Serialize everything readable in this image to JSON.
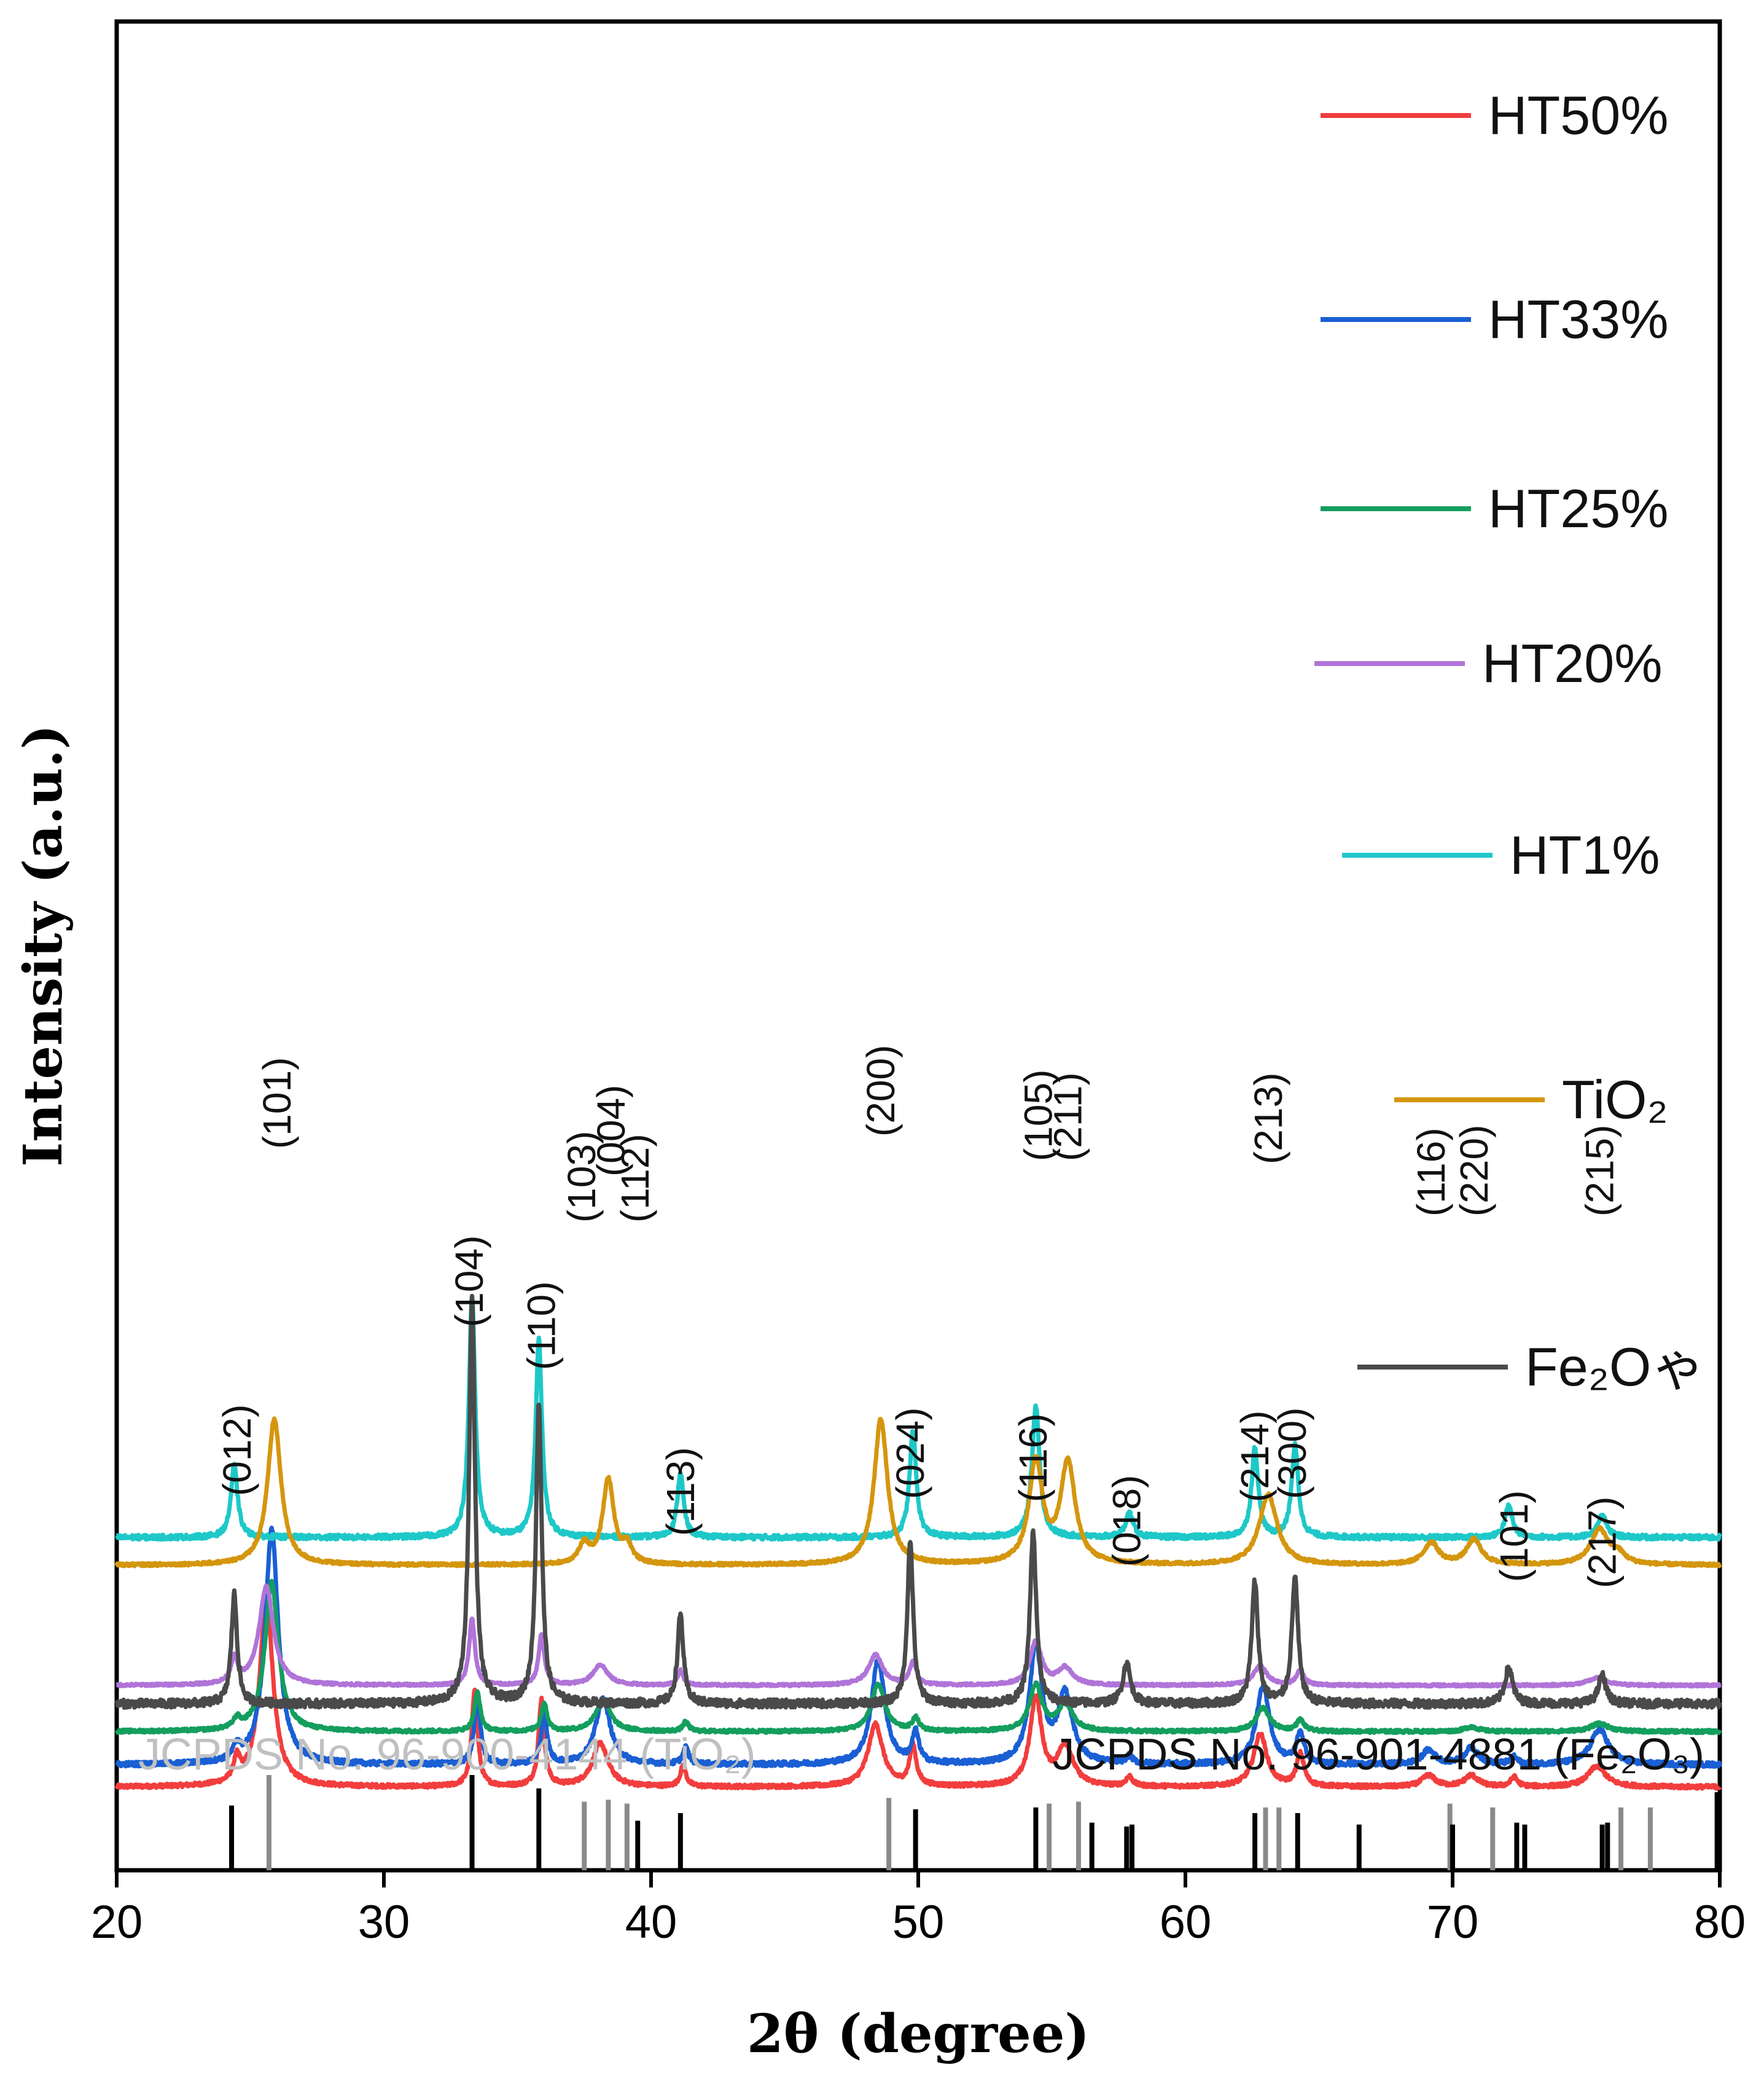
{
  "chart_data": {
    "type": "line",
    "title": "",
    "xlabel": "2θ (degree)",
    "ylabel": "Intensity (a.u.)",
    "xlim": [
      20,
      80
    ],
    "xticks": [
      "20",
      "30",
      "40",
      "50",
      "60",
      "70",
      "80"
    ],
    "series": [
      {
        "name": "HT50%",
        "color": "#f23d3d",
        "baseline": 0.955,
        "scale": 0.102,
        "peaks": [
          [
            24.5,
            0.12,
            0.15
          ],
          [
            25.6,
            1.0,
            0.3
          ],
          [
            33.4,
            0.52,
            0.13
          ],
          [
            35.9,
            0.46,
            0.13
          ],
          [
            38.1,
            0.23,
            0.35
          ],
          [
            41.2,
            0.11,
            0.13
          ],
          [
            48.4,
            0.33,
            0.33
          ],
          [
            49.8,
            0.21,
            0.15
          ],
          [
            54.4,
            0.47,
            0.26
          ],
          [
            55.5,
            0.21,
            0.35
          ],
          [
            57.9,
            0.05,
            0.15
          ],
          [
            62.8,
            0.28,
            0.3
          ],
          [
            64.3,
            0.17,
            0.17
          ],
          [
            69.1,
            0.06,
            0.3
          ],
          [
            70.7,
            0.06,
            0.3
          ],
          [
            72.3,
            0.05,
            0.15
          ],
          [
            75.4,
            0.11,
            0.4
          ]
        ]
      },
      {
        "name": "HT33%",
        "color": "#1a5fd4",
        "baseline": 0.943,
        "scale": 0.127,
        "peaks": [
          [
            24.5,
            0.06,
            0.15
          ],
          [
            25.8,
            1.0,
            0.3
          ],
          [
            33.5,
            0.3,
            0.13
          ],
          [
            36.0,
            0.22,
            0.13
          ],
          [
            38.2,
            0.28,
            0.33
          ],
          [
            41.3,
            0.07,
            0.13
          ],
          [
            48.5,
            0.45,
            0.3
          ],
          [
            49.9,
            0.13,
            0.15
          ],
          [
            54.4,
            0.5,
            0.28
          ],
          [
            55.5,
            0.29,
            0.33
          ],
          [
            57.9,
            0.03,
            0.15
          ],
          [
            62.9,
            0.33,
            0.3
          ],
          [
            64.3,
            0.13,
            0.17
          ],
          [
            69.1,
            0.06,
            0.3
          ],
          [
            70.7,
            0.07,
            0.3
          ],
          [
            72.3,
            0.03,
            0.15
          ],
          [
            75.5,
            0.15,
            0.4
          ]
        ]
      },
      {
        "name": "HT25%",
        "color": "#149e5e",
        "baseline": 0.925,
        "scale": 0.085,
        "peaks": [
          [
            24.5,
            0.06,
            0.15
          ],
          [
            25.8,
            0.95,
            0.3
          ],
          [
            33.5,
            0.25,
            0.13
          ],
          [
            36.0,
            0.18,
            0.13
          ],
          [
            38.2,
            0.2,
            0.33
          ],
          [
            41.3,
            0.06,
            0.13
          ],
          [
            48.5,
            0.3,
            0.3
          ],
          [
            49.9,
            0.08,
            0.15
          ],
          [
            54.4,
            0.29,
            0.28
          ],
          [
            55.5,
            0.17,
            0.33
          ],
          [
            62.9,
            0.15,
            0.3
          ],
          [
            64.3,
            0.07,
            0.17
          ],
          [
            70.7,
            0.03,
            0.3
          ],
          [
            75.5,
            0.05,
            0.4
          ]
        ]
      },
      {
        "name": "HT20%",
        "color": "#b074d8",
        "baseline": 0.9,
        "scale": 0.065,
        "peaks": [
          [
            24.4,
            0.2,
            0.15
          ],
          [
            25.6,
            0.82,
            0.32
          ],
          [
            33.3,
            0.55,
            0.13
          ],
          [
            35.9,
            0.42,
            0.13
          ],
          [
            38.1,
            0.17,
            0.33
          ],
          [
            41.1,
            0.12,
            0.13
          ],
          [
            48.4,
            0.25,
            0.32
          ],
          [
            49.8,
            0.19,
            0.15
          ],
          [
            54.4,
            0.36,
            0.26
          ],
          [
            55.5,
            0.14,
            0.33
          ],
          [
            62.8,
            0.16,
            0.3
          ],
          [
            64.3,
            0.12,
            0.17
          ],
          [
            75.4,
            0.06,
            0.4
          ]
        ]
      },
      {
        "name": "HT1%",
        "color": "#1ec8c8",
        "baseline": 0.82,
        "scale": 0.13,
        "peaks": [
          [
            24.4,
            0.3,
            0.15
          ],
          [
            33.3,
            1.0,
            0.14
          ],
          [
            35.8,
            0.82,
            0.14
          ],
          [
            41.1,
            0.27,
            0.14
          ],
          [
            49.8,
            0.44,
            0.15
          ],
          [
            54.4,
            0.55,
            0.17
          ],
          [
            57.9,
            0.1,
            0.17
          ],
          [
            62.6,
            0.37,
            0.15
          ],
          [
            64.1,
            0.38,
            0.15
          ],
          [
            72.1,
            0.13,
            0.17
          ],
          [
            75.6,
            0.09,
            0.2
          ]
        ]
      },
      {
        "name": "TiO₂",
        "color": "#d4960e",
        "baseline": 0.835,
        "scale": 0.079,
        "peaks": [
          [
            25.9,
            1.0,
            0.3
          ],
          [
            37.5,
            0.13,
            0.25
          ],
          [
            38.4,
            0.58,
            0.25
          ],
          [
            39.1,
            0.12,
            0.22
          ],
          [
            48.6,
            1.0,
            0.3
          ],
          [
            54.4,
            0.7,
            0.3
          ],
          [
            55.6,
            0.69,
            0.33
          ],
          [
            63.1,
            0.48,
            0.4
          ],
          [
            69.2,
            0.15,
            0.33
          ],
          [
            70.8,
            0.17,
            0.33
          ],
          [
            75.5,
            0.24,
            0.4
          ],
          [
            76.2,
            0.06,
            0.3
          ]
        ]
      },
      {
        "name": "Fe₂Oゃ",
        "color": "#4a4a4a",
        "baseline": 0.91,
        "scale": 0.22,
        "peaks": [
          [
            24.4,
            0.27,
            0.13
          ],
          [
            33.3,
            1.0,
            0.13
          ],
          [
            35.8,
            0.74,
            0.13
          ],
          [
            41.1,
            0.22,
            0.13
          ],
          [
            49.7,
            0.4,
            0.13
          ],
          [
            54.3,
            0.42,
            0.14
          ],
          [
            57.8,
            0.1,
            0.17
          ],
          [
            62.6,
            0.3,
            0.14
          ],
          [
            64.1,
            0.31,
            0.14
          ],
          [
            72.1,
            0.09,
            0.17
          ],
          [
            75.6,
            0.07,
            0.17
          ]
        ]
      }
    ],
    "hkl_labels": {
      "TiO2": [
        [
          "(101)",
          26.0
        ],
        [
          "(103)",
          37.4
        ],
        [
          "(004)",
          38.5
        ],
        [
          "(112)",
          39.4
        ],
        [
          "(200)",
          48.6
        ],
        [
          "(105)",
          54.5
        ],
        [
          "(211)",
          55.6
        ],
        [
          "(213)",
          63.1
        ],
        [
          "(116)",
          69.2
        ],
        [
          "(220)",
          70.8
        ],
        [
          "(215)",
          75.5
        ]
      ],
      "Fe2O3": [
        [
          "(012)",
          24.5
        ],
        [
          "(104)",
          33.2
        ],
        [
          "(110)",
          35.9
        ],
        [
          "(113)",
          41.1
        ],
        [
          "(024)",
          49.7
        ],
        [
          "(116)",
          54.3
        ],
        [
          "(018)",
          57.8
        ],
        [
          "(214)",
          62.6
        ],
        [
          "(300)",
          64.0
        ],
        [
          "(101)",
          72.3
        ],
        [
          "(217)",
          75.6
        ]
      ]
    },
    "references": {
      "tio2_label": "JCPDS No. 96-900-4144 (TiO₂)",
      "fe2o3_label": "JCPDS No. 96-901-4881 (Fe₂O₃)",
      "tio2_color": "#8a8a8a",
      "fe2o3_color": "#000000",
      "tio2_lines": [
        [
          25.7,
          1.0
        ],
        [
          37.5,
          0.72
        ],
        [
          38.4,
          0.74
        ],
        [
          39.1,
          0.7
        ],
        [
          48.9,
          0.76
        ],
        [
          54.9,
          0.7
        ],
        [
          56.0,
          0.72
        ],
        [
          63.0,
          0.66
        ],
        [
          63.5,
          0.66
        ],
        [
          69.9,
          0.7
        ],
        [
          71.5,
          0.66
        ],
        [
          76.3,
          0.66
        ],
        [
          77.4,
          0.66
        ]
      ],
      "fe2o3_lines": [
        [
          24.3,
          0.68
        ],
        [
          33.3,
          1.0
        ],
        [
          35.8,
          0.86
        ],
        [
          39.5,
          0.52
        ],
        [
          41.1,
          0.6
        ],
        [
          49.9,
          0.64
        ],
        [
          54.4,
          0.66
        ],
        [
          56.5,
          0.5
        ],
        [
          57.8,
          0.46
        ],
        [
          58.0,
          0.48
        ],
        [
          62.6,
          0.6
        ],
        [
          64.2,
          0.6
        ],
        [
          66.5,
          0.48
        ],
        [
          70.0,
          0.48
        ],
        [
          72.4,
          0.5
        ],
        [
          72.7,
          0.48
        ],
        [
          75.6,
          0.48
        ],
        [
          75.8,
          0.5
        ],
        [
          79.9,
          0.82
        ]
      ]
    }
  }
}
